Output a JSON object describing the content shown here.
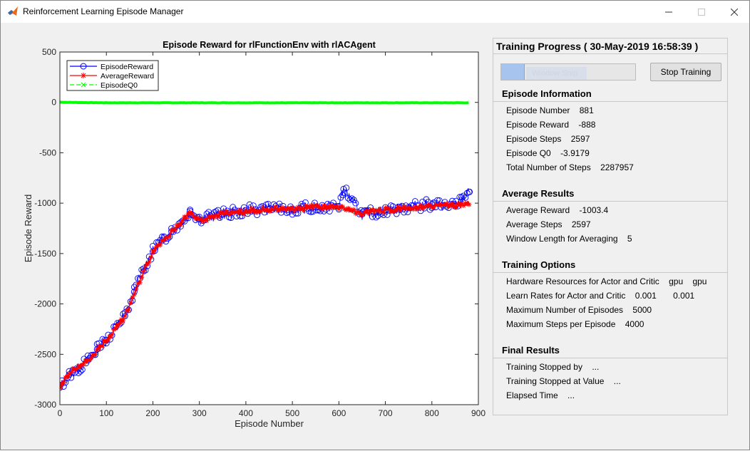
{
  "window": {
    "title": "Reinforcement Learning Episode Manager",
    "icon": "matlab-icon",
    "controls": [
      "minimize-icon",
      "maximize-icon",
      "close-icon"
    ]
  },
  "chart_data": {
    "type": "line",
    "title": "Episode Reward for rlFunctionEnv with rlACAgent",
    "xlabel": "Episode Number",
    "ylabel": "Episode Reward",
    "xlim": [
      0,
      900
    ],
    "ylim": [
      -3000,
      500
    ],
    "xticks": [
      "0",
      "100",
      "200",
      "300",
      "400",
      "500",
      "600",
      "700",
      "800",
      "900"
    ],
    "yticks": [
      "500",
      "0",
      "-500",
      "-1000",
      "-1500",
      "-2000",
      "-2500",
      "-3000"
    ],
    "legend_position": "top-left",
    "grid": false,
    "series": [
      {
        "name": "EpisodeReward",
        "color": "#0000ff",
        "marker": "circle",
        "line": "solid",
        "x": [
          0,
          20,
          40,
          60,
          80,
          100,
          120,
          140,
          160,
          180,
          200,
          220,
          240,
          260,
          280,
          300,
          350,
          400,
          450,
          500,
          550,
          600,
          610,
          650,
          700,
          750,
          800,
          850,
          881
        ],
        "y": [
          -2830,
          -2700,
          -2640,
          -2560,
          -2450,
          -2360,
          -2230,
          -2120,
          -1880,
          -1650,
          -1480,
          -1370,
          -1280,
          -1190,
          -1080,
          -1160,
          -1110,
          -1070,
          -1060,
          -1060,
          -1040,
          -1030,
          -860,
          -1110,
          -1070,
          -1040,
          -1010,
          -1030,
          -888
        ]
      },
      {
        "name": "AverageReward",
        "color": "#ff0000",
        "marker": "asterisk",
        "line": "solid",
        "x": [
          0,
          20,
          40,
          60,
          80,
          100,
          120,
          140,
          160,
          180,
          200,
          220,
          240,
          260,
          280,
          300,
          350,
          400,
          450,
          500,
          550,
          600,
          650,
          700,
          750,
          800,
          850,
          881
        ],
        "y": [
          -2830,
          -2680,
          -2630,
          -2560,
          -2460,
          -2360,
          -2240,
          -2130,
          -1910,
          -1680,
          -1500,
          -1380,
          -1290,
          -1200,
          -1090,
          -1170,
          -1110,
          -1080,
          -1060,
          -1060,
          -1040,
          -1040,
          -1100,
          -1070,
          -1050,
          -1020,
          -1030,
          -1003.4
        ]
      },
      {
        "name": "EpisodeQ0",
        "color": "#00ff00",
        "marker": "x",
        "line": "dashed",
        "x": [
          0,
          50,
          100,
          200,
          300,
          400,
          500,
          600,
          700,
          800,
          881
        ],
        "y": [
          2,
          -2,
          -4,
          -4,
          -4,
          -4,
          -4,
          -4,
          -4,
          -4,
          -3.9179
        ]
      }
    ]
  },
  "panel": {
    "title": "Training Progress ( 30-May-2019 16:58:39 )",
    "progress_fraction": 0.1762,
    "ghost_tooltip": "Window Snip",
    "stop_button": "Stop Training",
    "sections": [
      {
        "heading": "Episode Information",
        "rows": [
          {
            "label": "Episode Number",
            "value": "881"
          },
          {
            "label": "Episode Reward",
            "value": "-888"
          },
          {
            "label": "Episode Steps",
            "value": "2597"
          },
          {
            "label": "Episode Q0",
            "value": "-3.9179"
          },
          {
            "label": "Total Number of Steps",
            "value": "2287957"
          }
        ]
      },
      {
        "heading": "Average Results",
        "rows": [
          {
            "label": "Average Reward",
            "value": "-1003.4"
          },
          {
            "label": "Average Steps",
            "value": "2597"
          },
          {
            "label": "Window Length for Averaging",
            "value": "5"
          }
        ]
      },
      {
        "heading": "Training Options",
        "rows": [
          {
            "label": "Hardware Resources for Actor and Critic",
            "value": "gpu    gpu"
          },
          {
            "label": "Learn Rates for Actor and Critic",
            "value": "0.001       0.001"
          },
          {
            "label": "Maximum Number of Episodes",
            "value": "5000"
          },
          {
            "label": "Maximum Steps per Episode",
            "value": "4000"
          }
        ]
      },
      {
        "heading": "Final Results",
        "rows": [
          {
            "label": "Training Stopped by",
            "value": "..."
          },
          {
            "label": "Training Stopped at Value",
            "value": "..."
          },
          {
            "label": "Elapsed Time",
            "value": "..."
          }
        ]
      }
    ]
  }
}
